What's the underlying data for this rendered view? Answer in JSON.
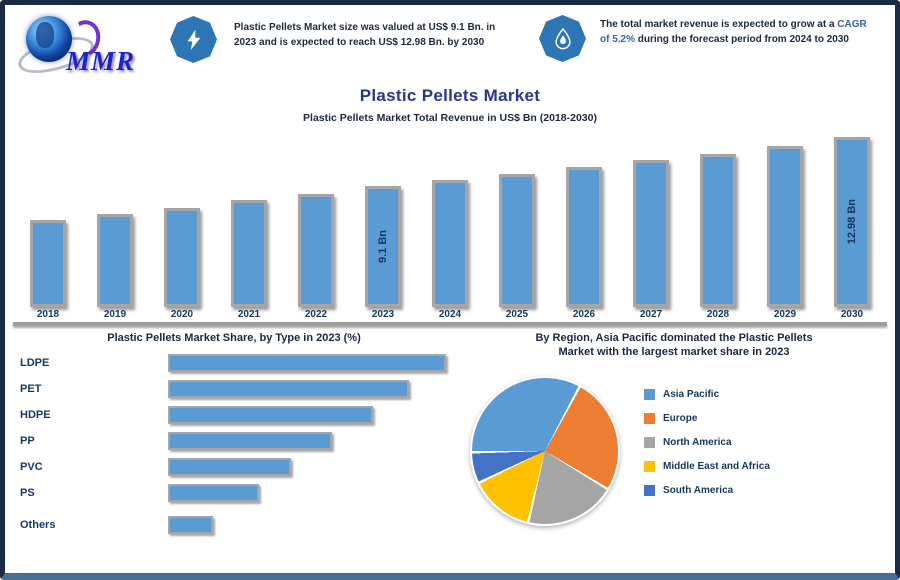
{
  "brand": {
    "logo_text": "MMR"
  },
  "header": {
    "left": {
      "icon": "lightning-icon",
      "text": "Plastic Pellets Market size was valued at US$ 9.1 Bn. in 2023 and is expected to reach US$ 12.98 Bn. by 2030"
    },
    "right": {
      "icon": "water-drop-icon",
      "text_before": "The total market revenue is expected to grow at a ",
      "highlight": "CAGR of 5.2%",
      "text_after": " during the forecast period from 2024 to 2030"
    }
  },
  "title": "Plastic Pellets Market",
  "subtitle": "Plastic Pellets Market Total Revenue in US$ Bn (2018-2030)",
  "colors": {
    "bar_fill": "#5b9bd5",
    "bar_border": "#a6a6a6",
    "title_blue": "#283593",
    "badge_blue": "#2e75b6",
    "text_navy": "#1c2740",
    "label_navy": "#17365d"
  },
  "chart_data": [
    {
      "type": "bar",
      "title": "Plastic Pellets Market",
      "ylabel": "US$ Bn",
      "categories": [
        "2018",
        "2019",
        "2020",
        "2021",
        "2022",
        "2023",
        "2024",
        "2025",
        "2026",
        "2027",
        "2028",
        "2029",
        "2030"
      ],
      "values": [
        6.4,
        6.9,
        7.4,
        8.0,
        8.5,
        9.1,
        9.6,
        10.1,
        10.6,
        11.2,
        11.7,
        12.3,
        12.98
      ],
      "bar_labels": [
        "",
        "",
        "",
        "",
        "",
        "9.1 Bn",
        "",
        "",
        "",
        "",
        "",
        "",
        "12.98 Bn"
      ],
      "bar_color": "#5b9bd5",
      "grid": false
    },
    {
      "type": "bar-horizontal",
      "title": "Plastic Pellets Market Share, by Type in 2023 (%)",
      "categories": [
        "LDPE",
        "PET",
        "HDPE",
        "PP",
        "PVC",
        "PS",
        "Others"
      ],
      "values": [
        30,
        26,
        22,
        17.5,
        13,
        9.5,
        4.5
      ],
      "bar_color": "#5b9bd5"
    },
    {
      "type": "pie",
      "title_line1": "By Region, Asia Pacific dominated the Plastic Pellets",
      "title_line2": "Market with the largest market share in 2023",
      "labels": [
        "Asia Pacific",
        "Europe",
        "North America",
        "Middle East and Africa",
        "South America"
      ],
      "values": [
        33.5,
        26,
        20,
        14,
        6.5
      ],
      "colors": [
        "#5b9bd5",
        "#ed7d31",
        "#a5a5a5",
        "#ffc000",
        "#4472c4"
      ],
      "legend_position": "right"
    }
  ]
}
